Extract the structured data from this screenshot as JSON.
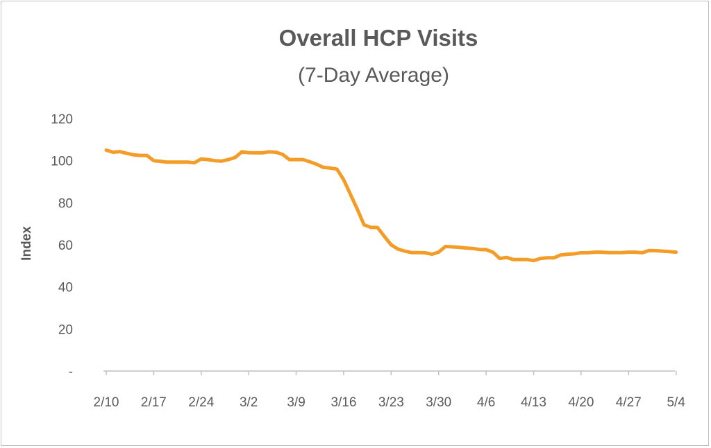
{
  "chart_data": {
    "type": "line",
    "title": "Overall HCP Visits",
    "subtitle": "(7-Day Average)",
    "xlabel": "",
    "ylabel": "Index",
    "ylim": [
      0,
      120
    ],
    "y_ticks": [
      {
        "value": 0,
        "label": "-"
      },
      {
        "value": 20,
        "label": "20"
      },
      {
        "value": 40,
        "label": "40"
      },
      {
        "value": 60,
        "label": "60"
      },
      {
        "value": 80,
        "label": "80"
      },
      {
        "value": 100,
        "label": "100"
      },
      {
        "value": 120,
        "label": "120"
      }
    ],
    "x_tick_labels": [
      "2/10",
      "2/17",
      "2/24",
      "3/2",
      "3/9",
      "3/16",
      "3/23",
      "3/30",
      "4/6",
      "4/13",
      "4/20",
      "4/27",
      "5/4"
    ],
    "grid": false,
    "line_color": "#f39c27",
    "series": [
      {
        "x": [
          "2/10",
          "2/11",
          "2/12",
          "2/13",
          "2/14",
          "2/15",
          "2/16",
          "2/17",
          "2/18",
          "2/19",
          "2/20",
          "2/21",
          "2/22",
          "2/23",
          "2/24",
          "2/25",
          "2/26",
          "2/27",
          "2/28",
          "2/29",
          "3/1",
          "3/2",
          "3/3",
          "3/4",
          "3/5",
          "3/6",
          "3/7",
          "3/8",
          "3/9",
          "3/10",
          "3/11",
          "3/12",
          "3/13",
          "3/14",
          "3/15",
          "3/16",
          "3/17",
          "3/18",
          "3/19",
          "3/20",
          "3/21",
          "3/22",
          "3/23",
          "3/24",
          "3/25",
          "3/26",
          "3/27",
          "3/28",
          "3/29",
          "3/30",
          "3/31",
          "4/1",
          "4/2",
          "4/3",
          "4/4",
          "4/5",
          "4/6",
          "4/7",
          "4/8",
          "4/9",
          "4/10",
          "4/11",
          "4/12",
          "4/13",
          "4/14",
          "4/15",
          "4/16",
          "4/17",
          "4/18",
          "4/19",
          "4/20",
          "4/21",
          "4/22",
          "4/23",
          "4/24",
          "4/25",
          "4/26",
          "4/27",
          "4/28",
          "4/29",
          "4/30",
          "5/1",
          "5/2",
          "5/3",
          "5/4"
        ],
        "values": [
          105,
          104,
          104.3,
          103.5,
          102.8,
          102.5,
          102.5,
          100,
          99.7,
          99.3,
          99.3,
          99.3,
          99.3,
          99,
          100.8,
          100.5,
          100,
          99.8,
          100.5,
          101.5,
          104.2,
          103.8,
          103.7,
          103.7,
          104.2,
          104,
          103,
          100.5,
          100.5,
          100.5,
          99.5,
          98.3,
          96.8,
          96.5,
          96,
          91,
          84,
          77,
          69.5,
          68.3,
          68.2,
          64,
          60,
          58,
          57,
          56.3,
          56.3,
          56.2,
          55.5,
          56.5,
          59.2,
          59,
          58.8,
          58.5,
          58.3,
          57.8,
          57.7,
          56.5,
          53.5,
          54,
          53,
          53,
          53,
          52.5,
          53.5,
          53.8,
          53.8,
          55.2,
          55.5,
          55.7,
          56.2,
          56.2,
          56.5,
          56.5,
          56.3,
          56.3,
          56.3,
          56.5,
          56.5,
          56.2,
          57.3,
          57.2,
          57,
          56.8,
          56.5
        ]
      }
    ]
  }
}
